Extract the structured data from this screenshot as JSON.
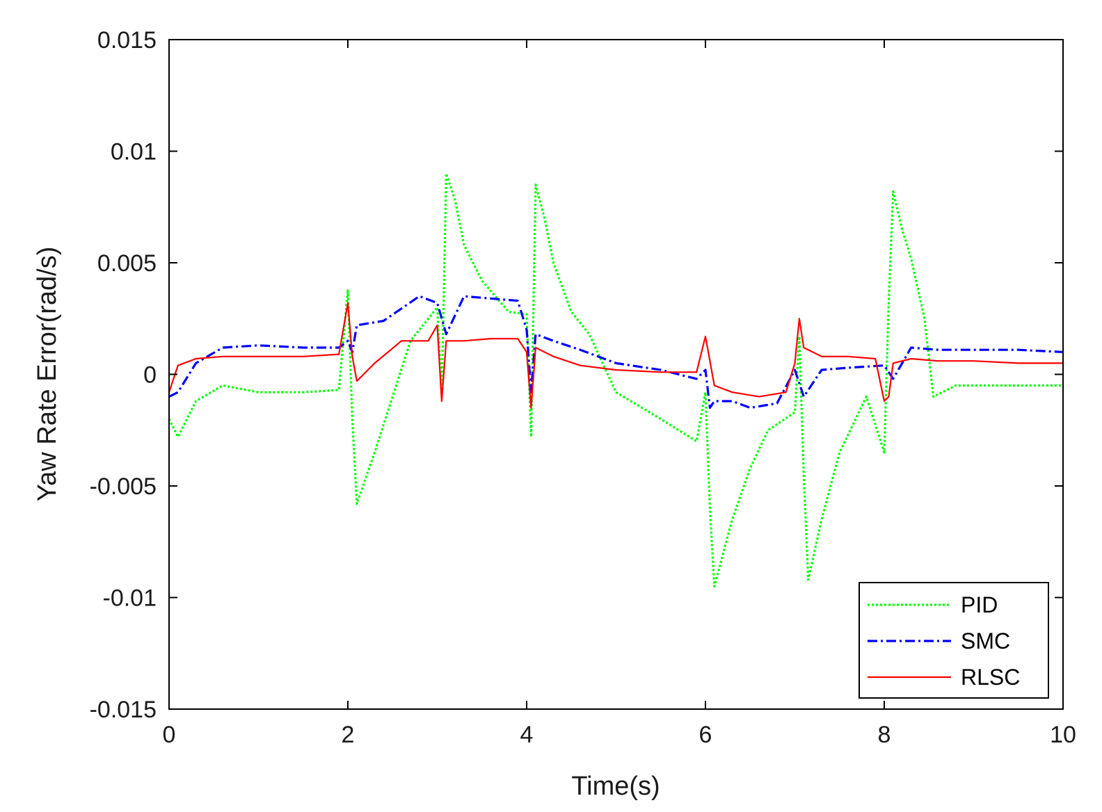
{
  "chart_data": {
    "type": "line",
    "title": "",
    "xlabel": "Time(s)",
    "ylabel": "Yaw Rate Error(rad/s)",
    "xlim": [
      0,
      10
    ],
    "ylim": [
      -0.015,
      0.015
    ],
    "xticks": [
      0,
      2,
      4,
      6,
      8,
      10
    ],
    "xtick_labels": [
      "0",
      "2",
      "4",
      "6",
      "8",
      "10"
    ],
    "yticks": [
      -0.015,
      -0.01,
      -0.005,
      0,
      0.005,
      0.01,
      0.015
    ],
    "ytick_labels": [
      "-0.015",
      "-0.01",
      "-0.005",
      "0",
      "0.005",
      "0.01",
      "0.015"
    ],
    "grid": false,
    "legend_position": "bottom-right",
    "series": [
      {
        "name": "PID",
        "color": "#00ff00",
        "line_style": "dotted",
        "x": [
          0,
          0.1,
          0.3,
          0.6,
          1.0,
          1.5,
          1.9,
          2.0,
          2.05,
          2.1,
          2.3,
          2.5,
          2.7,
          3.0,
          3.05,
          3.1,
          3.2,
          3.3,
          3.5,
          3.8,
          4.0,
          4.05,
          4.1,
          4.2,
          4.3,
          4.5,
          4.7,
          5.0,
          5.5,
          5.9,
          6.0,
          6.05,
          6.1,
          6.3,
          6.5,
          6.7,
          7.0,
          7.05,
          7.1,
          7.15,
          7.3,
          7.5,
          7.8,
          8.0,
          8.05,
          8.1,
          8.2,
          8.3,
          8.45,
          8.55,
          8.8,
          9.0,
          9.5,
          10.0
        ],
        "y": [
          -0.002,
          -0.0028,
          -0.0012,
          -0.0005,
          -0.0008,
          -0.0008,
          -0.0007,
          0.0038,
          -0.002,
          -0.0058,
          -0.0035,
          -0.001,
          0.0015,
          0.003,
          -0.001,
          0.009,
          0.0078,
          0.0058,
          0.0042,
          0.0028,
          0.0027,
          -0.0028,
          0.0085,
          0.007,
          0.005,
          0.0028,
          0.0018,
          -0.0008,
          -0.002,
          -0.003,
          -0.0008,
          -0.006,
          -0.0095,
          -0.0065,
          -0.0042,
          -0.0025,
          -0.0017,
          0.0017,
          -0.0045,
          -0.0092,
          -0.0065,
          -0.0035,
          -0.001,
          -0.0035,
          0.0032,
          0.0082,
          0.0065,
          0.0052,
          0.0025,
          -0.001,
          -0.0005,
          -0.0005,
          -0.0005,
          -0.0005
        ]
      },
      {
        "name": "SMC",
        "color": "#0000ff",
        "line_style": "dash-dot",
        "x": [
          0,
          0.1,
          0.3,
          0.6,
          1.0,
          1.5,
          1.9,
          2.0,
          2.05,
          2.1,
          2.4,
          2.8,
          3.0,
          3.1,
          3.3,
          3.6,
          3.9,
          4.0,
          4.05,
          4.1,
          4.3,
          4.6,
          5.0,
          5.5,
          5.9,
          6.0,
          6.05,
          6.1,
          6.3,
          6.5,
          6.8,
          7.0,
          7.1,
          7.3,
          7.6,
          8.0,
          8.1,
          8.3,
          8.6,
          9.0,
          9.5,
          10.0
        ],
        "y": [
          -0.001,
          -0.0008,
          0.0005,
          0.0012,
          0.0013,
          0.0012,
          0.0012,
          0.0015,
          0.001,
          0.0022,
          0.0024,
          0.0035,
          0.0032,
          0.0018,
          0.0035,
          0.0034,
          0.0033,
          0.002,
          -0.0008,
          0.0018,
          0.0015,
          0.0011,
          0.0005,
          0.0002,
          -0.0002,
          0.0002,
          -0.0015,
          -0.0012,
          -0.0012,
          -0.0015,
          -0.0013,
          0.0002,
          -0.001,
          0.0002,
          0.0003,
          0.0004,
          -0.0002,
          0.0012,
          0.0011,
          0.0011,
          0.0011,
          0.001
        ]
      },
      {
        "name": "RLSC",
        "color": "#ff0000",
        "line_style": "solid",
        "x": [
          0,
          0.1,
          0.3,
          0.6,
          1.0,
          1.5,
          1.9,
          2.0,
          2.05,
          2.1,
          2.3,
          2.6,
          2.9,
          3.0,
          3.05,
          3.1,
          3.3,
          3.6,
          3.9,
          4.0,
          4.05,
          4.1,
          4.3,
          4.6,
          5.0,
          5.5,
          5.9,
          6.0,
          6.1,
          6.3,
          6.6,
          6.9,
          7.0,
          7.05,
          7.1,
          7.3,
          7.6,
          7.9,
          8.0,
          8.05,
          8.1,
          8.3,
          8.6,
          9.0,
          9.5,
          10.0
        ],
        "y": [
          -0.0008,
          0.0004,
          0.0007,
          0.0008,
          0.0008,
          0.0008,
          0.0009,
          0.0032,
          0.0008,
          -0.0003,
          0.0005,
          0.0015,
          0.0015,
          0.0022,
          -0.0012,
          0.0015,
          0.0015,
          0.0016,
          0.0016,
          0.001,
          -0.0015,
          0.0012,
          0.0008,
          0.0004,
          0.0002,
          0.0001,
          0.0001,
          0.0017,
          -0.0005,
          -0.0008,
          -0.001,
          -0.0008,
          0.0005,
          0.0025,
          0.0012,
          0.0008,
          0.0008,
          0.0007,
          -0.0012,
          -0.001,
          0.0005,
          0.0007,
          0.0006,
          0.0006,
          0.0005,
          0.0005
        ]
      }
    ]
  }
}
